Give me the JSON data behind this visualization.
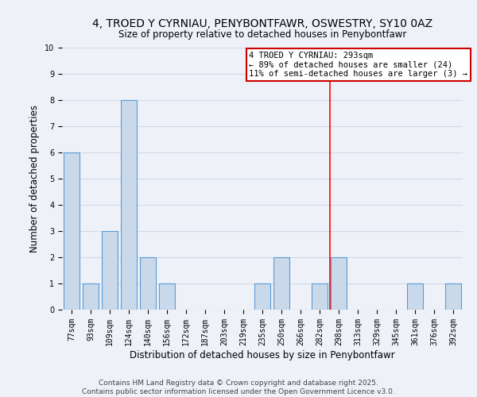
{
  "title": "4, TROED Y CYRNIAU, PENYBONTFAWR, OSWESTRY, SY10 0AZ",
  "subtitle": "Size of property relative to detached houses in Penybontfawr",
  "xlabel": "Distribution of detached houses by size in Penybontfawr",
  "ylabel": "Number of detached properties",
  "categories": [
    "77sqm",
    "93sqm",
    "109sqm",
    "124sqm",
    "140sqm",
    "156sqm",
    "172sqm",
    "187sqm",
    "203sqm",
    "219sqm",
    "235sqm",
    "250sqm",
    "266sqm",
    "282sqm",
    "298sqm",
    "313sqm",
    "329sqm",
    "345sqm",
    "361sqm",
    "376sqm",
    "392sqm"
  ],
  "values": [
    6,
    1,
    3,
    8,
    2,
    1,
    0,
    0,
    0,
    0,
    1,
    2,
    0,
    1,
    2,
    0,
    0,
    0,
    1,
    0,
    1
  ],
  "bar_color": "#c9d9ea",
  "bar_edge_color": "#5b9bd5",
  "grid_color": "#d0d8e8",
  "background_color": "#eef2f8",
  "red_line_x": 13.55,
  "annotation_text": "4 TROED Y CYRNIAU: 293sqm\n← 89% of detached houses are smaller (24)\n11% of semi-detached houses are larger (3) →",
  "annotation_box_color": "#ffffff",
  "annotation_box_edge": "#cc0000",
  "footer": "Contains HM Land Registry data © Crown copyright and database right 2025.\nContains public sector information licensed under the Open Government Licence v3.0.",
  "ylim": [
    0,
    10
  ],
  "title_fontsize": 10,
  "subtitle_fontsize": 8.5,
  "tick_fontsize": 7,
  "ylabel_fontsize": 8.5,
  "xlabel_fontsize": 8.5,
  "footer_fontsize": 6.5,
  "annot_fontsize": 7.5
}
